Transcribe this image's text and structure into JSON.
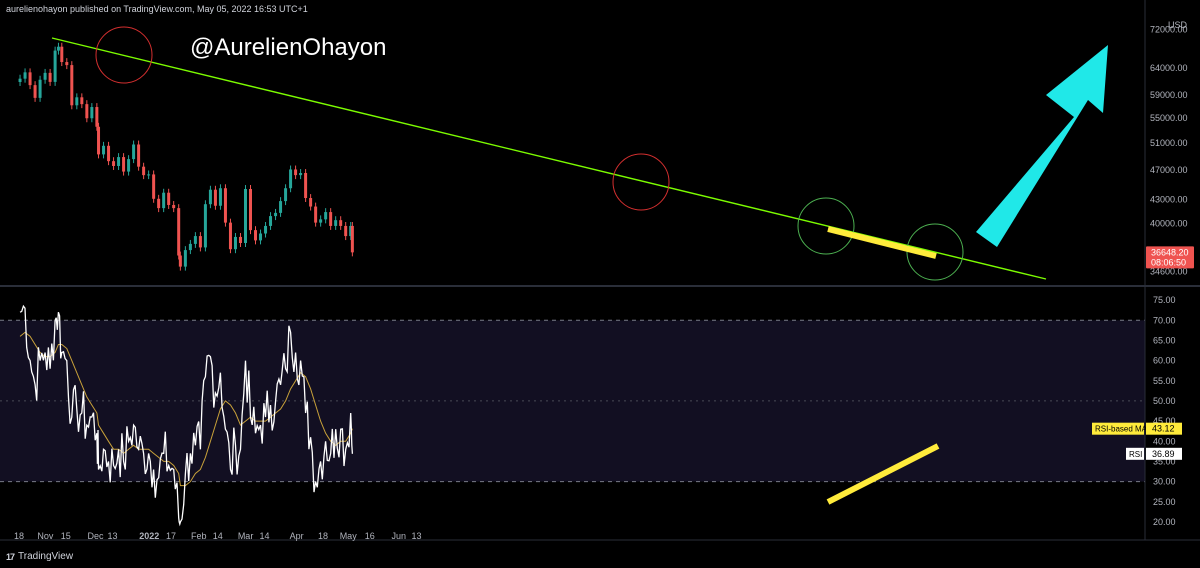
{
  "header": {
    "publisher": "aurelienohayon published on TradingView.com, May 05, 2022 16:53 UTC+1"
  },
  "watermark": "@AurelienOhayon",
  "footer": {
    "logo_icon": "tradingview-logo-icon",
    "brand": "TradingView"
  },
  "colors": {
    "up": "#26a69a",
    "down": "#ef5350",
    "trendline": "#7cfc00",
    "circle_red": "#d32f2f",
    "circle_green": "#4caf50",
    "highlight": "#ffeb3b",
    "arrow": "#20e8e8",
    "rsi": "#ffffff",
    "rsi_ma": "#c8a13a",
    "price_badge": "#ef5350"
  },
  "chart_data": [
    {
      "type": "candlestick",
      "title": "",
      "currency_label": "USD",
      "yscale": "log",
      "ylim": [
        33200,
        74500
      ],
      "y_ticks": [
        "72000.00",
        "64000.00",
        "59000.00",
        "55000.00",
        "51000.00",
        "47000.00",
        "43000.00",
        "40000.00",
        "36648.20",
        "34600.00"
      ],
      "x_ticks": [
        "18",
        "Nov",
        "15",
        "Dec",
        "13",
        "2022",
        "17",
        "Feb",
        "14",
        "Mar",
        "14",
        "Apr",
        "18",
        "May",
        "16",
        "Jun",
        "13"
      ],
      "last_price": "36648.20",
      "countdown": "08:06:50",
      "x": [
        "2021-10-18",
        "2021-10-21",
        "2021-10-24",
        "2021-10-27",
        "2021-10-30",
        "2021-11-02",
        "2021-11-05",
        "2021-11-08",
        "2021-11-10",
        "2021-11-12",
        "2021-11-15",
        "2021-11-18",
        "2021-11-21",
        "2021-11-24",
        "2021-11-27",
        "2021-11-30",
        "2021-12-03",
        "2021-12-04",
        "2021-12-07",
        "2021-12-10",
        "2021-12-13",
        "2021-12-16",
        "2021-12-19",
        "2021-12-22",
        "2021-12-25",
        "2021-12-28",
        "2021-12-31",
        "2022-01-03",
        "2022-01-06",
        "2022-01-09",
        "2022-01-12",
        "2022-01-15",
        "2022-01-18",
        "2022-01-21",
        "2022-01-22",
        "2022-01-25",
        "2022-01-28",
        "2022-01-31",
        "2022-02-03",
        "2022-02-06",
        "2022-02-09",
        "2022-02-12",
        "2022-02-15",
        "2022-02-18",
        "2022-02-21",
        "2022-02-24",
        "2022-02-27",
        "2022-03-02",
        "2022-03-05",
        "2022-03-08",
        "2022-03-11",
        "2022-03-14",
        "2022-03-17",
        "2022-03-20",
        "2022-03-23",
        "2022-03-26",
        "2022-03-29",
        "2022-04-01",
        "2022-04-04",
        "2022-04-07",
        "2022-04-10",
        "2022-04-13",
        "2022-04-16",
        "2022-04-19",
        "2022-04-22",
        "2022-04-25",
        "2022-04-28",
        "2022-05-01",
        "2022-05-04",
        "2022-05-05"
      ],
      "close": [
        62000,
        63200,
        60800,
        58500,
        61800,
        63100,
        61400,
        67500,
        68300,
        65200,
        64600,
        57200,
        58600,
        57400,
        55000,
        56900,
        53600,
        49300,
        50600,
        48300,
        47600,
        48900,
        46800,
        48600,
        50800,
        47500,
        46300,
        46400,
        43100,
        41900,
        43900,
        42300,
        41900,
        36300,
        35100,
        36900,
        37600,
        38500,
        37200,
        42400,
        44300,
        42200,
        44500,
        40100,
        37000,
        38400,
        37700,
        44400,
        39200,
        38000,
        38800,
        39700,
        40900,
        41300,
        42800,
        44500,
        47100,
        46300,
        46600,
        43200,
        42100,
        40100,
        40500,
        41400,
        39700,
        40400,
        39700,
        38500,
        39700,
        36648
      ]
    },
    {
      "type": "line",
      "title": "",
      "ylim": [
        18,
        78
      ],
      "y_ticks": [
        "75.00",
        "70.00",
        "65.00",
        "60.00",
        "55.00",
        "50.00",
        "45.00",
        "40.00",
        "35.00",
        "30.00",
        "25.00",
        "20.00"
      ],
      "band": [
        30,
        70
      ],
      "midline": 50,
      "series": [
        {
          "name": "RSI",
          "value_label": "36.89",
          "values": [
            72,
            73,
            60,
            54,
            60,
            62,
            58,
            70,
            72,
            62,
            60,
            46,
            48,
            47,
            44,
            46,
            42,
            33,
            38,
            35,
            34,
            38,
            35,
            40,
            44,
            38,
            37,
            37,
            33,
            31,
            37,
            34,
            33,
            21,
            20,
            32,
            37,
            39,
            38,
            56,
            61,
            52,
            57,
            43,
            33,
            39,
            38,
            60,
            46,
            42,
            44,
            46,
            49,
            50,
            54,
            58,
            67,
            62,
            60,
            47,
            41,
            30,
            35,
            40,
            37,
            43,
            43,
            38,
            47,
            36.89
          ]
        },
        {
          "name": "RSI-based MA",
          "value_label": "43.12",
          "values": [
            66,
            67,
            66,
            64,
            62,
            61,
            61,
            62,
            64,
            64,
            63,
            60,
            57,
            54,
            51,
            49,
            47,
            44,
            42,
            40,
            38,
            38,
            37,
            38,
            39,
            38,
            38,
            38,
            37,
            36,
            35,
            35,
            34,
            32,
            29,
            29,
            30,
            32,
            33,
            36,
            40,
            44,
            48,
            50,
            49,
            47,
            44,
            45,
            46,
            45,
            45,
            45,
            46,
            47,
            48,
            50,
            53,
            55,
            57,
            56,
            53,
            49,
            45,
            42,
            40,
            39,
            40,
            40,
            42,
            43.12
          ]
        }
      ]
    }
  ],
  "annotations": {
    "trendline": "descending resistance",
    "circles": [
      "red",
      "red",
      "green",
      "green"
    ],
    "highlights": [
      "price support",
      "rsi rising lows"
    ],
    "arrow": "up"
  }
}
